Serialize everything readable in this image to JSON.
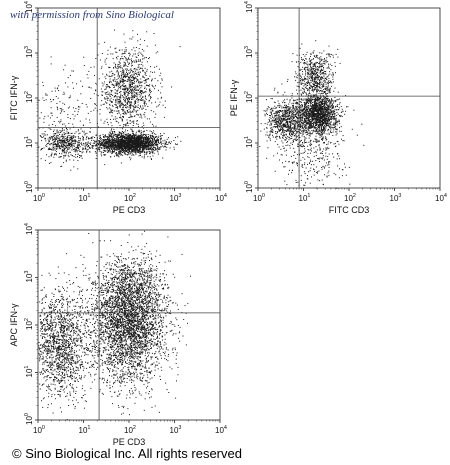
{
  "watermark": "with permission from Sino Biological",
  "copyright": "© Sino Biological Inc. All rights reserved",
  "tick_labels": [
    "10^0",
    "10^1",
    "10^2",
    "10^3",
    "10^4"
  ],
  "chart_data": [
    {
      "type": "scatter",
      "xlabel": "PE CD3",
      "ylabel": "FITC IFN-γ",
      "xscale": "log",
      "yscale": "log",
      "xlim": [
        1,
        10000
      ],
      "ylim": [
        1,
        10000
      ],
      "gate": {
        "x": 20,
        "y": 22
      },
      "populations": [
        {
          "cx": 100,
          "cy": 10,
          "sx": 0.22,
          "sy": 0.07,
          "n": 2200
        },
        {
          "cx": 90,
          "cy": 150,
          "sx": 0.2,
          "sy": 0.28,
          "n": 1100
        },
        {
          "cx": 4,
          "cy": 10,
          "sx": 0.16,
          "sy": 0.1,
          "n": 500
        },
        {
          "cx": 3,
          "cy": 40,
          "sx": 0.2,
          "sy": 0.3,
          "n": 150
        }
      ],
      "point_color": "#1a1a1a"
    },
    {
      "type": "scatter",
      "xlabel": "FITC CD3",
      "ylabel": "PE IFN-γ",
      "xscale": "log",
      "yscale": "log",
      "xlim": [
        1,
        10000
      ],
      "ylim": [
        1,
        10000
      ],
      "gate": {
        "x": 8,
        "y": 110
      },
      "populations": [
        {
          "cx": 20,
          "cy": 45,
          "sx": 0.14,
          "sy": 0.14,
          "n": 1600
        },
        {
          "cx": 18,
          "cy": 300,
          "sx": 0.13,
          "sy": 0.18,
          "n": 600
        },
        {
          "cx": 4,
          "cy": 30,
          "sx": 0.13,
          "sy": 0.14,
          "n": 700
        },
        {
          "cx": 15,
          "cy": 8,
          "sx": 0.22,
          "sy": 0.3,
          "n": 350
        }
      ],
      "point_color": "#1a1a1a"
    },
    {
      "type": "scatter",
      "xlabel": "PE CD3",
      "ylabel": "APC IFN-γ",
      "xscale": "log",
      "yscale": "log",
      "xlim": [
        1,
        10000
      ],
      "ylim": [
        1,
        10000
      ],
      "gate": {
        "x": 22,
        "y": 180
      },
      "populations": [
        {
          "cx": 100,
          "cy": 100,
          "sx": 0.26,
          "sy": 0.38,
          "n": 3200
        },
        {
          "cx": 3,
          "cy": 40,
          "sx": 0.2,
          "sy": 0.34,
          "n": 1500
        },
        {
          "cx": 100,
          "cy": 600,
          "sx": 0.25,
          "sy": 0.22,
          "n": 600
        }
      ],
      "point_color": "#1a1a1a"
    }
  ]
}
